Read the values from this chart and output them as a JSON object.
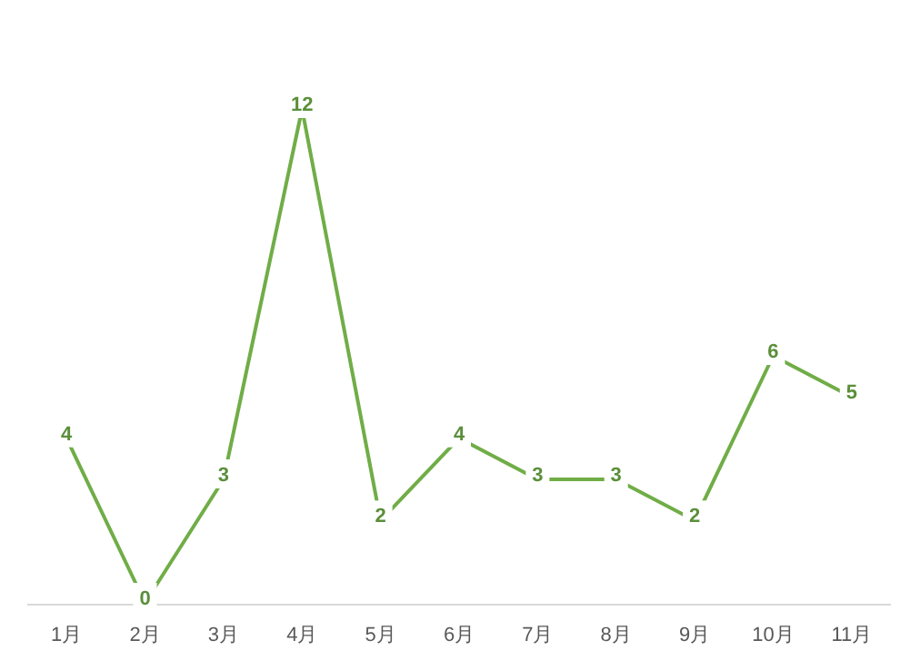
{
  "chart_data": {
    "type": "line",
    "categories": [
      "1月",
      "2月",
      "3月",
      "4月",
      "5月",
      "6月",
      "7月",
      "8月",
      "9月",
      "10月",
      "11月"
    ],
    "values": [
      4,
      0,
      3,
      12,
      2,
      4,
      3,
      3,
      2,
      6,
      5
    ],
    "color": "#70ad47",
    "data_labels": true,
    "marker": "none"
  }
}
